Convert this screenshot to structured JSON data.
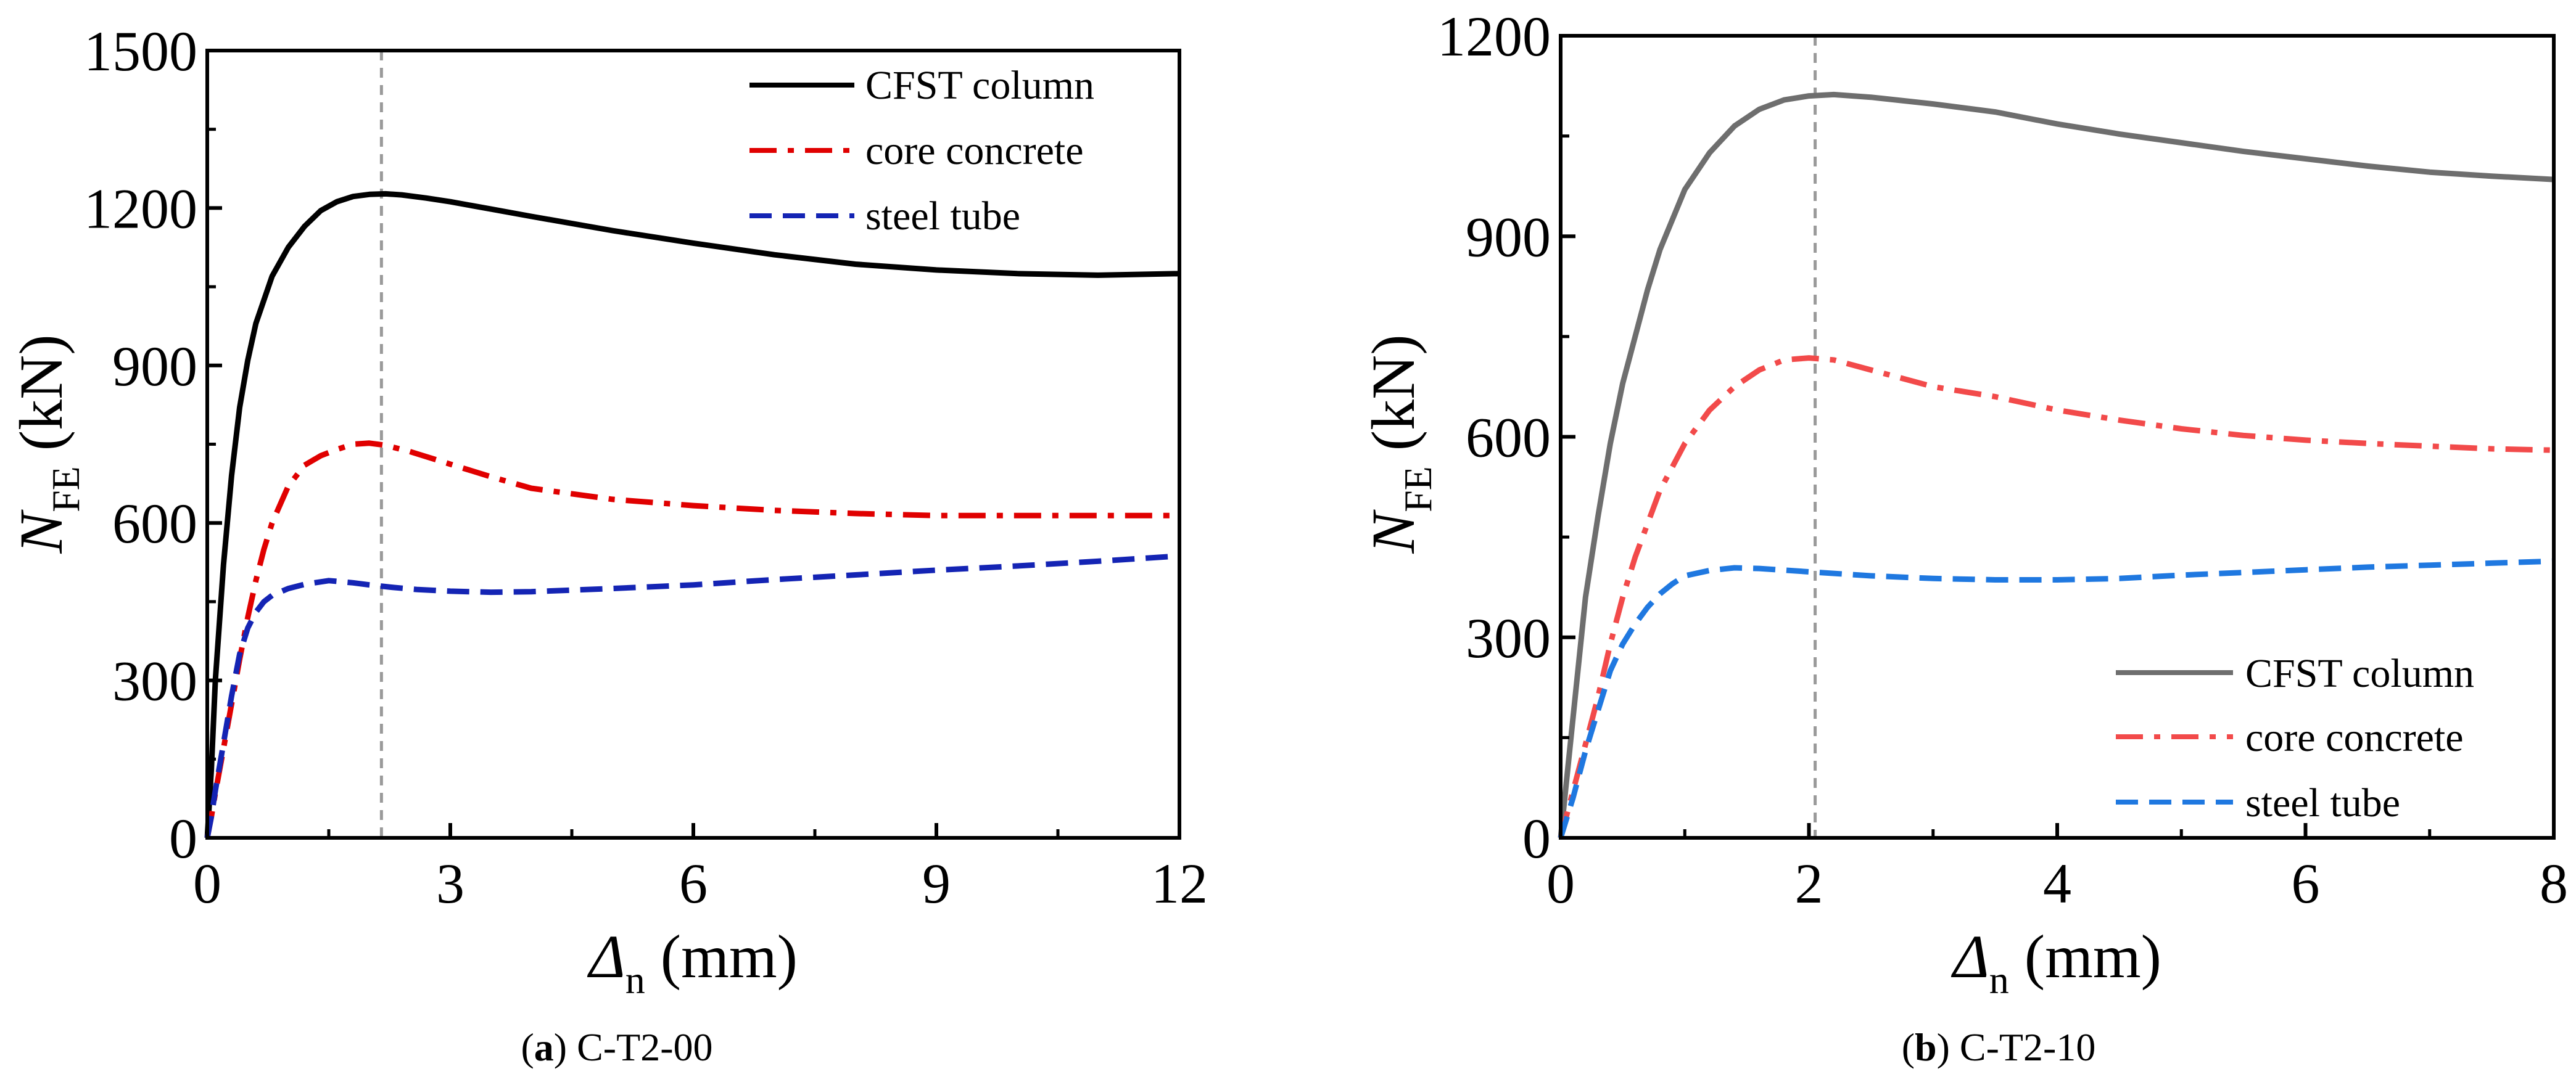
{
  "chart_data": [
    {
      "id": "a",
      "type": "line",
      "caption": {
        "letter": "a",
        "open": "(",
        "close": ")",
        "label": " C-T2-00"
      },
      "xlabel": {
        "symbol": "Δ",
        "sub": "n",
        "unit": " (mm)"
      },
      "ylabel": {
        "symbol": "N",
        "sub": "FE",
        "unit": " (kN)"
      },
      "xlim": [
        0,
        12
      ],
      "ylim": [
        0,
        1500
      ],
      "xticks": [
        0,
        3,
        6,
        9,
        12
      ],
      "yticks": [
        0,
        300,
        600,
        900,
        1200,
        1500
      ],
      "peak_marker_x": 2.15,
      "legend_position": "top-right",
      "series": [
        {
          "name": "CFST column",
          "color": "#000000",
          "dash": "solid",
          "x": [
            0,
            0.05,
            0.1,
            0.2,
            0.3,
            0.4,
            0.5,
            0.6,
            0.8,
            1.0,
            1.2,
            1.4,
            1.6,
            1.8,
            2.0,
            2.2,
            2.4,
            2.7,
            3.0,
            3.5,
            4.0,
            5.0,
            6.0,
            7.0,
            8.0,
            9.0,
            10.0,
            11.0,
            12.0
          ],
          "y": [
            0,
            130,
            300,
            520,
            690,
            820,
            910,
            980,
            1070,
            1125,
            1165,
            1195,
            1212,
            1222,
            1226,
            1227,
            1225,
            1219,
            1212,
            1198,
            1184,
            1157,
            1133,
            1111,
            1093,
            1082,
            1075,
            1072,
            1075
          ]
        },
        {
          "name": "core concrete",
          "color": "#e00000",
          "dash": "dashdot",
          "x": [
            0,
            0.05,
            0.1,
            0.2,
            0.3,
            0.4,
            0.5,
            0.6,
            0.7,
            0.8,
            1.0,
            1.2,
            1.4,
            1.6,
            1.8,
            2.0,
            2.2,
            2.5,
            3.0,
            3.5,
            4.0,
            5.0,
            6.0,
            7.0,
            8.0,
            9.0,
            10.0,
            11.0,
            12.0
          ],
          "y": [
            0,
            40,
            85,
            170,
            255,
            340,
            420,
            490,
            550,
            600,
            670,
            710,
            728,
            740,
            750,
            752,
            748,
            736,
            712,
            688,
            666,
            645,
            633,
            624,
            618,
            614,
            614,
            614,
            614
          ]
        },
        {
          "name": "steel tube",
          "color": "#1424b4",
          "dash": "dashed",
          "x": [
            0,
            0.05,
            0.1,
            0.2,
            0.3,
            0.4,
            0.5,
            0.6,
            0.7,
            0.8,
            1.0,
            1.2,
            1.5,
            1.8,
            2.0,
            2.3,
            2.6,
            3.0,
            3.5,
            4.0,
            5.0,
            6.0,
            7.0,
            8.0,
            9.0,
            10.0,
            11.0,
            12.0
          ],
          "y": [
            0,
            40,
            90,
            180,
            270,
            350,
            400,
            430,
            450,
            462,
            475,
            483,
            490,
            486,
            482,
            477,
            473,
            470,
            468,
            469,
            475,
            482,
            492,
            501,
            510,
            518,
            527,
            537
          ]
        }
      ]
    },
    {
      "id": "b",
      "type": "line",
      "caption": {
        "letter": "b",
        "open": "(",
        "close": ")",
        "label": " C-T2-10"
      },
      "xlabel": {
        "symbol": "Δ",
        "sub": "n",
        "unit": " (mm)"
      },
      "ylabel": {
        "symbol": "N",
        "sub": "FE",
        "unit": " (kN)"
      },
      "xlim": [
        0,
        8
      ],
      "ylim": [
        0,
        1200
      ],
      "xticks": [
        0,
        2,
        4,
        6,
        8
      ],
      "yticks": [
        0,
        300,
        600,
        900,
        1200
      ],
      "peak_marker_x": 2.05,
      "legend_position": "bottom-right",
      "series": [
        {
          "name": "CFST column",
          "color": "#6e6e6e",
          "dash": "solid",
          "x": [
            0,
            0.1,
            0.2,
            0.3,
            0.4,
            0.5,
            0.6,
            0.7,
            0.8,
            1.0,
            1.2,
            1.4,
            1.6,
            1.8,
            2.0,
            2.2,
            2.5,
            3.0,
            3.5,
            4.0,
            4.5,
            5.0,
            5.5,
            6.0,
            6.5,
            7.0,
            7.5,
            8.0
          ],
          "y": [
            0,
            180,
            360,
            480,
            590,
            680,
            750,
            820,
            880,
            970,
            1025,
            1065,
            1090,
            1104,
            1110,
            1112,
            1108,
            1098,
            1086,
            1068,
            1053,
            1040,
            1027,
            1016,
            1005,
            996,
            990,
            985
          ]
        },
        {
          "name": "core concrete",
          "color": "#f24a4a",
          "dash": "dashdot",
          "x": [
            0,
            0.1,
            0.2,
            0.3,
            0.4,
            0.5,
            0.6,
            0.7,
            0.8,
            1.0,
            1.2,
            1.4,
            1.6,
            1.8,
            2.0,
            2.2,
            2.5,
            3.0,
            3.5,
            4.0,
            4.5,
            5.0,
            5.5,
            6.0,
            6.5,
            7.0,
            7.5,
            8.0
          ],
          "y": [
            0,
            70,
            140,
            210,
            290,
            360,
            420,
            470,
            520,
            590,
            640,
            675,
            700,
            715,
            718,
            715,
            700,
            675,
            660,
            640,
            625,
            612,
            602,
            595,
            590,
            586,
            582,
            580
          ]
        },
        {
          "name": "steel tube",
          "color": "#1f78e0",
          "dash": "dashed",
          "x": [
            0,
            0.1,
            0.2,
            0.3,
            0.4,
            0.5,
            0.6,
            0.7,
            0.8,
            0.9,
            1.0,
            1.2,
            1.4,
            1.6,
            2.0,
            2.5,
            3.0,
            3.5,
            4.0,
            4.5,
            5.0,
            5.5,
            6.0,
            6.5,
            7.0,
            7.5,
            8.0
          ],
          "y": [
            0,
            60,
            130,
            190,
            250,
            290,
            320,
            345,
            365,
            380,
            392,
            400,
            404,
            403,
            398,
            392,
            388,
            386,
            386,
            388,
            393,
            397,
            401,
            405,
            408,
            411,
            414
          ]
        }
      ]
    }
  ]
}
